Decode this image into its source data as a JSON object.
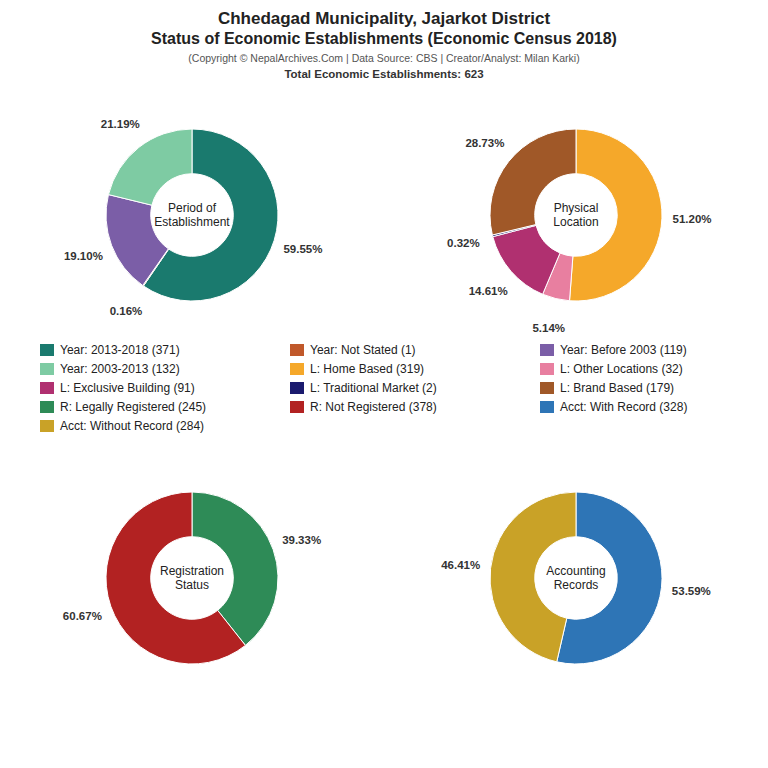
{
  "title": "Chhedagad Municipality, Jajarkot District\nStatus of Economic Establishments (Economic Census 2018)",
  "subtitle": "(Copyright © NepalArchives.Com | Data Source: CBS | Creator/Analyst: Milan Karki)",
  "annotations": [
    "Total Economic Establishments: 623"
  ],
  "chart_data": [
    {
      "type": "donut",
      "title": "Period of\nEstablishment",
      "categories": [
        "Year: 2013-2018 (371)",
        "Year: Not Stated (1)",
        "Year: Before 2003 (119)",
        "Year: 2003-2013 (132)"
      ],
      "values": [
        59.55,
        0.16,
        19.1,
        21.19
      ],
      "value_labels": [
        "59.55%",
        "0.16%",
        "19.10%",
        "21.19%"
      ],
      "colors": [
        "#1a7a6e",
        "#c0582a",
        "#7b5ea7",
        "#7ecba3"
      ],
      "data_labels": true,
      "legend": "center"
    },
    {
      "type": "donut",
      "title": "Physical\nLocation",
      "categories": [
        "L: Home Based (319)",
        "L: Other Locations (32)",
        "L: Exclusive Building (91)",
        "L: Traditional Market (2)",
        "L: Brand Based (179)"
      ],
      "values": [
        51.2,
        5.14,
        14.61,
        0.32,
        28.73
      ],
      "value_labels": [
        "51.20%",
        "5.14%",
        "14.61%",
        "0.32%",
        "28.73%"
      ],
      "colors": [
        "#f5a82a",
        "#e87fa0",
        "#b03070",
        "#1a1a6e",
        "#a05828"
      ],
      "data_labels": true,
      "legend": "center"
    },
    {
      "type": "donut",
      "title": "Registration\nStatus",
      "categories": [
        "R: Legally Registered (245)",
        "R: Not Registered (378)"
      ],
      "values": [
        39.33,
        60.67
      ],
      "value_labels": [
        "39.33%",
        "60.67%"
      ],
      "colors": [
        "#2e8b57",
        "#b22222"
      ],
      "data_labels": true,
      "legend": "center"
    },
    {
      "type": "donut",
      "title": "Accounting\nRecords",
      "categories": [
        "Acct: With Record (328)",
        "Acct: Without Record (284)"
      ],
      "values": [
        53.59,
        46.41
      ],
      "value_labels": [
        "53.59%",
        "46.41%"
      ],
      "colors": [
        "#2e75b6",
        "#c9a227"
      ],
      "data_labels": true,
      "legend": "center"
    }
  ]
}
